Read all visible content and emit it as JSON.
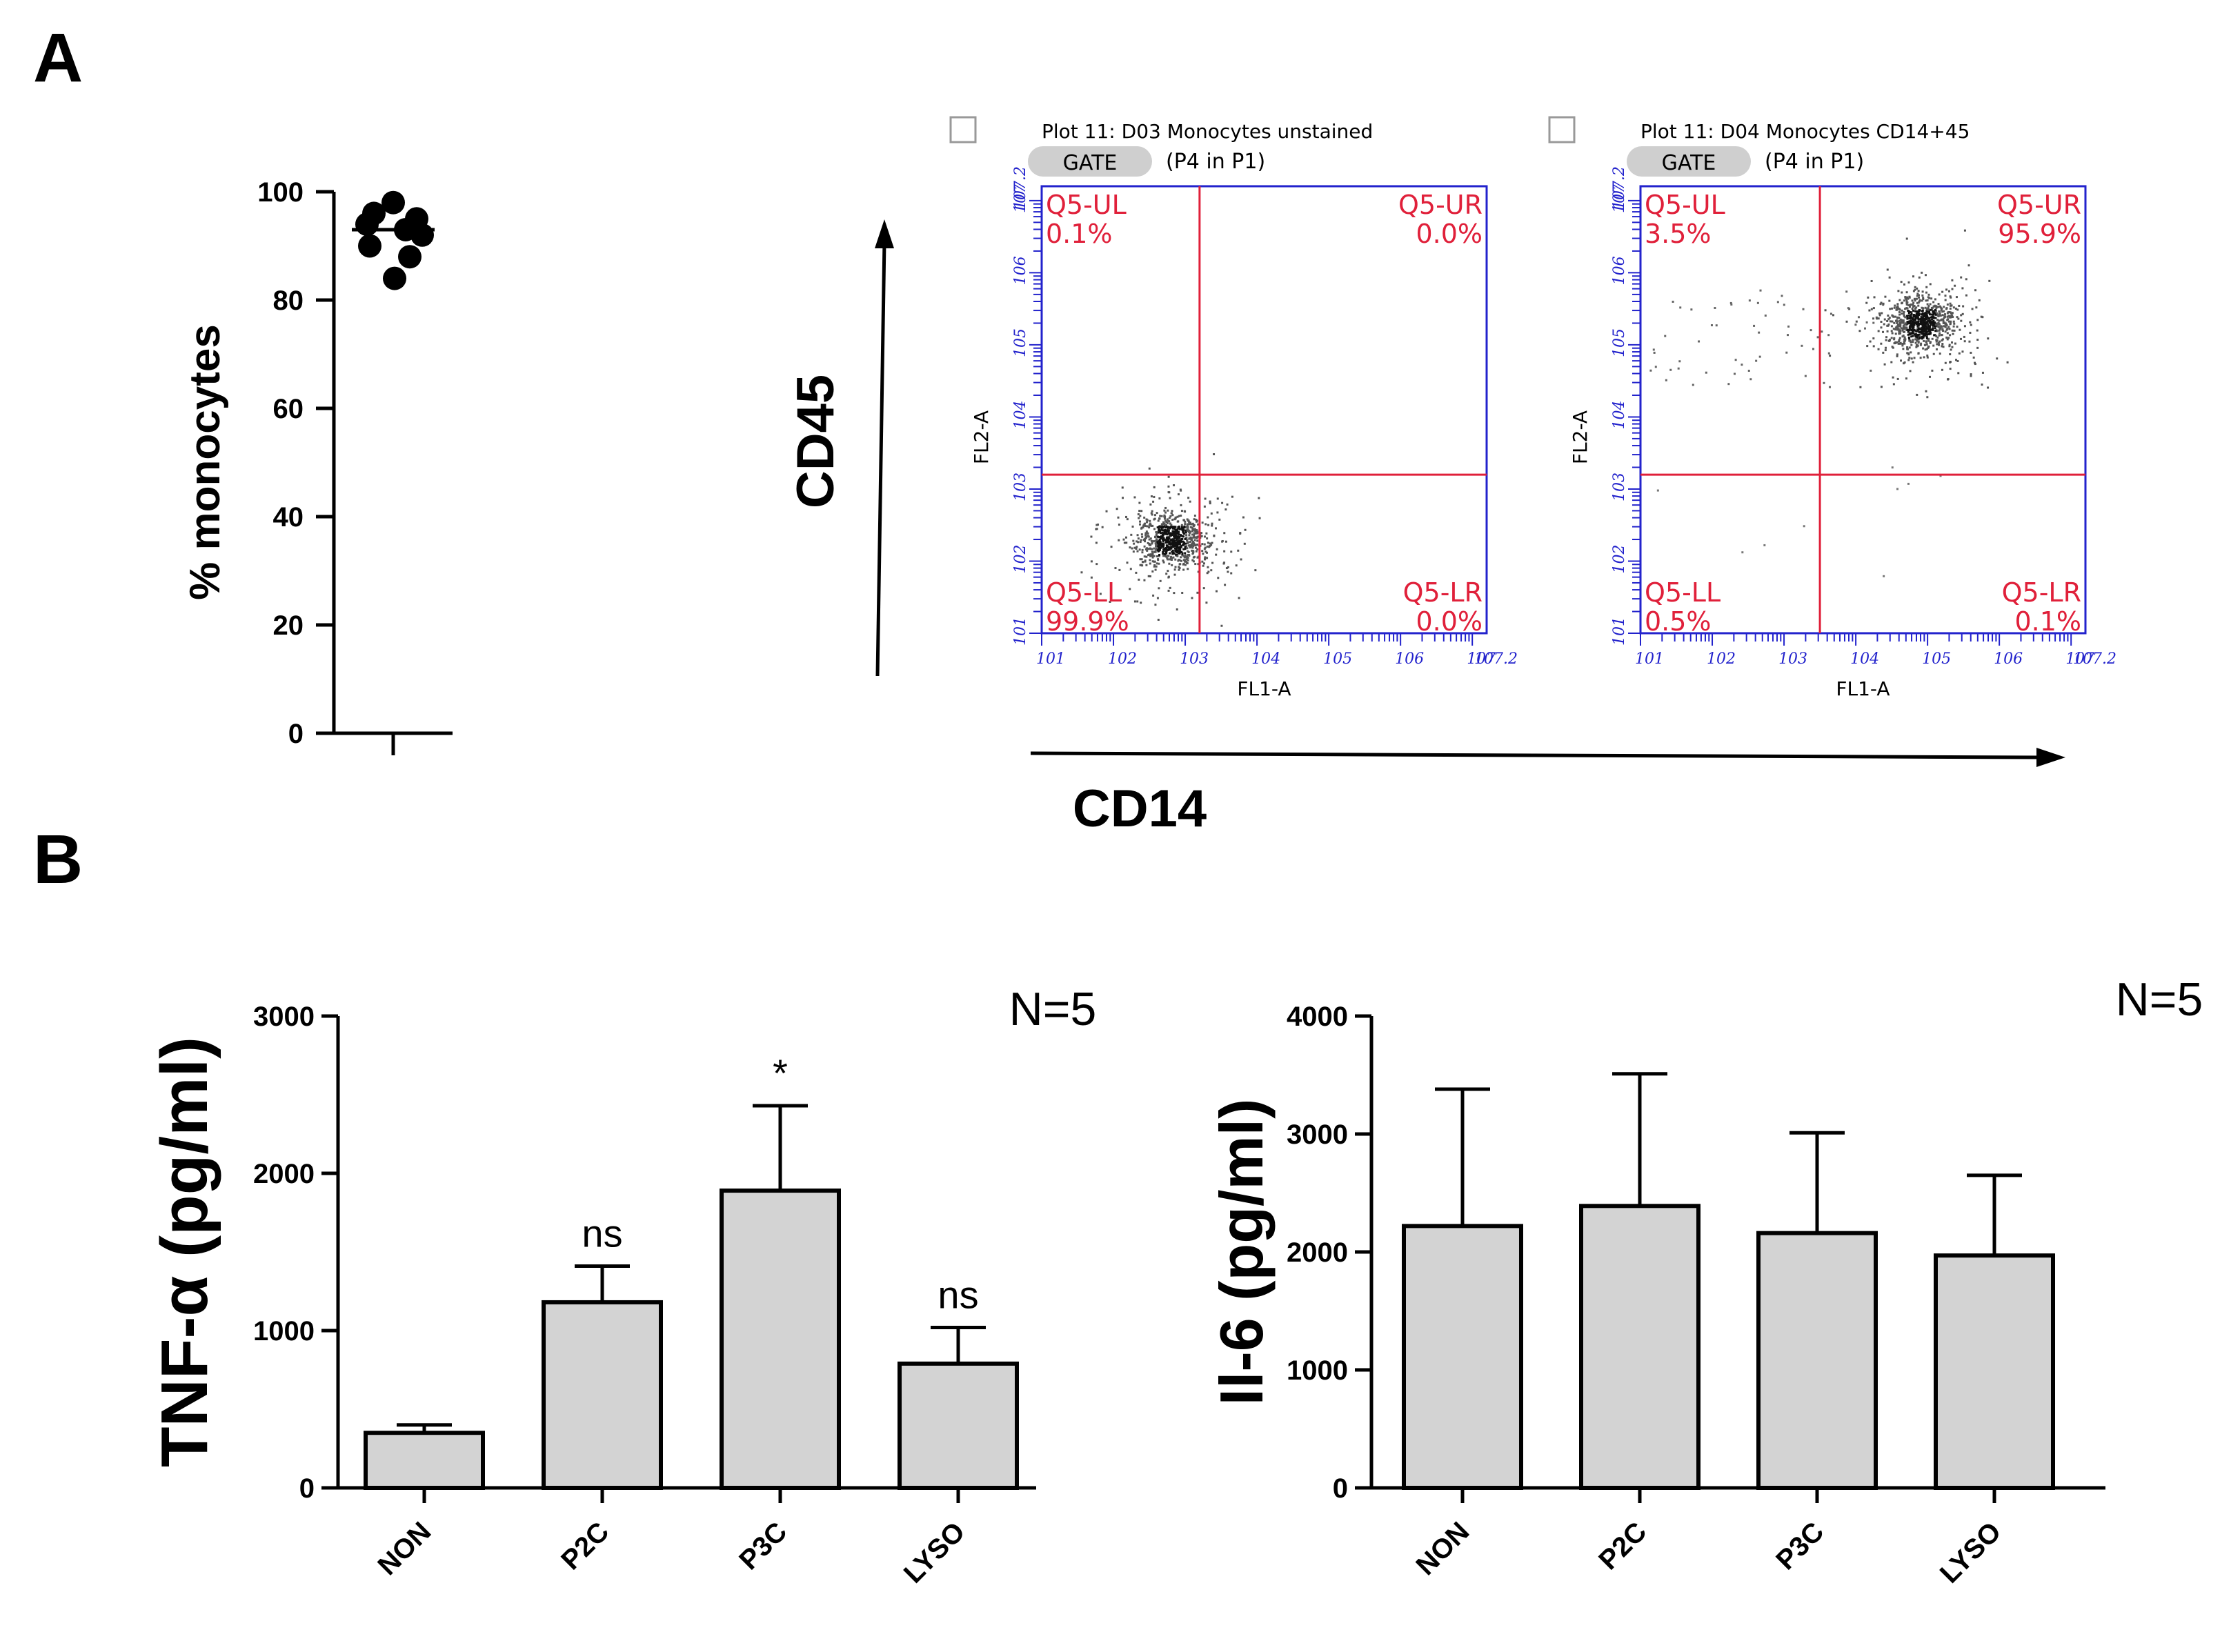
{
  "panels": {
    "a_label": "A",
    "b_label": "B"
  },
  "chart_data": [
    {
      "type": "scatter",
      "title": "",
      "xlabel": "",
      "ylabel": "% monocytes",
      "ylim": [
        0,
        100
      ],
      "yticks": [
        "0",
        "20",
        "40",
        "60",
        "80",
        "100"
      ],
      "values": [
        98,
        96,
        95,
        94,
        93,
        92,
        90,
        88,
        84
      ],
      "mean": 93
    },
    {
      "type": "scatter",
      "title": "Plot 11: D03 Monocytes unstained",
      "gate_button": "GATE",
      "gate_text": "(P4 in P1)",
      "xlabel": "FL1-A",
      "ylabel": "FL2-A",
      "log_range": [
        1,
        7.2
      ],
      "quadrant_split": {
        "x": 3.2,
        "y": 3.2
      },
      "quadrants": [
        {
          "name": "Q5-UL",
          "value": "0.1%"
        },
        {
          "name": "Q5-UR",
          "value": "0.0%"
        },
        {
          "name": "Q5-LL",
          "value": "99.9%"
        },
        {
          "name": "Q5-LR",
          "value": "0.0%"
        }
      ],
      "population_center": [
        2.8,
        2.3
      ]
    },
    {
      "type": "scatter",
      "title": "Plot 11: D04 Monocytes CD14+45",
      "gate_button": "GATE",
      "gate_text": "(P4 in P1)",
      "xlabel": "FL1-A",
      "ylabel": "FL2-A",
      "log_range": [
        1,
        7.2
      ],
      "quadrant_split": {
        "x": 3.5,
        "y": 3.2
      },
      "quadrants": [
        {
          "name": "Q5-UL",
          "value": "3.5%"
        },
        {
          "name": "Q5-UR",
          "value": "95.9%"
        },
        {
          "name": "Q5-LL",
          "value": "0.5%"
        },
        {
          "name": "Q5-LR",
          "value": "0.1%"
        }
      ],
      "population_center": [
        4.9,
        5.3
      ]
    },
    {
      "type": "bar",
      "title": "",
      "ylabel": "TNF-α (pg/ml)",
      "ylim": [
        0,
        3000
      ],
      "yticks": [
        "0",
        "1000",
        "2000",
        "3000"
      ],
      "categories": [
        "NON",
        "P2C",
        "P3C",
        "LYSO"
      ],
      "values": [
        350,
        1180,
        1890,
        790
      ],
      "errors": [
        50,
        230,
        540,
        230
      ],
      "annotations": [
        "",
        "ns",
        "*",
        "ns"
      ],
      "n_label": "N=5"
    },
    {
      "type": "bar",
      "title": "",
      "ylabel": "Il-6 (pg/ml)",
      "ylim": [
        0,
        4000
      ],
      "yticks": [
        "0",
        "1000",
        "2000",
        "3000",
        "4000"
      ],
      "categories": [
        "NON",
        "P2C",
        "P3C",
        "LYSO"
      ],
      "values": [
        2220,
        2390,
        2160,
        1970
      ],
      "errors": [
        1160,
        1120,
        850,
        680
      ],
      "annotations": [
        "",
        "",
        "",
        ""
      ],
      "n_label": "N=5"
    }
  ],
  "markers": {
    "cd45": "CD45",
    "cd14": "CD14"
  },
  "colors": {
    "bar_fill": "#d3d3d3",
    "quadrant_line": "#e0203a",
    "flow_axis": "#2222cc",
    "dot": "#333333"
  }
}
